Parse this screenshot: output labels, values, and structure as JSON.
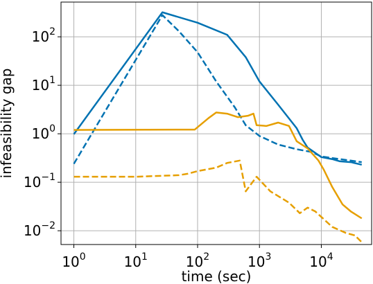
{
  "chart_data": {
    "type": "line",
    "xlabel": "time (sec)",
    "ylabel": "infeasibility gap",
    "xscale": "log",
    "yscale": "log",
    "xlim": [
      0.62,
      65000
    ],
    "ylim": [
      0.0052,
      520
    ],
    "grid": true,
    "legend": "none",
    "x_ticks": [
      {
        "base": "10",
        "exp": "0",
        "value": 1
      },
      {
        "base": "10",
        "exp": "1",
        "value": 10
      },
      {
        "base": "10",
        "exp": "2",
        "value": 100
      },
      {
        "base": "10",
        "exp": "3",
        "value": 1000
      },
      {
        "base": "10",
        "exp": "4",
        "value": 10000
      }
    ],
    "y_ticks": [
      {
        "base": "10",
        "exp": "2",
        "value": 100
      },
      {
        "base": "10",
        "exp": "1",
        "value": 10
      },
      {
        "base": "10",
        "exp": "0",
        "value": 1
      },
      {
        "base": "10",
        "exp": "−1",
        "value": 0.1
      },
      {
        "base": "10",
        "exp": "−2",
        "value": 0.01
      }
    ],
    "series": [
      {
        "color": "#0072b2",
        "style": "solid",
        "points": [
          [
            1,
            0.98
          ],
          [
            27,
            320
          ],
          [
            100,
            195
          ],
          [
            300,
            110
          ],
          [
            600,
            38
          ],
          [
            1000,
            12
          ],
          [
            2000,
            4
          ],
          [
            4000,
            1.3
          ],
          [
            5000,
            0.75
          ],
          [
            6000,
            0.52
          ],
          [
            10000,
            0.33
          ],
          [
            15000,
            0.3
          ],
          [
            20000,
            0.27
          ],
          [
            30000,
            0.26
          ],
          [
            45000,
            0.23
          ]
        ]
      },
      {
        "color": "#0072b2",
        "style": "dashed",
        "points": [
          [
            1,
            0.24
          ],
          [
            27,
            280
          ],
          [
            50,
            130
          ],
          [
            100,
            48
          ],
          [
            200,
            12
          ],
          [
            400,
            3.5
          ],
          [
            600,
            1.5
          ],
          [
            1000,
            0.9
          ],
          [
            2000,
            0.6
          ],
          [
            4000,
            0.48
          ],
          [
            7000,
            0.42
          ],
          [
            10000,
            0.34
          ],
          [
            20000,
            0.3
          ],
          [
            45000,
            0.26
          ]
        ]
      },
      {
        "color": "#e69f00",
        "style": "solid",
        "points": [
          [
            1,
            1.2
          ],
          [
            90,
            1.22
          ],
          [
            150,
            2.1
          ],
          [
            200,
            2.75
          ],
          [
            300,
            2.6
          ],
          [
            450,
            2.2
          ],
          [
            650,
            2.35
          ],
          [
            800,
            2.6
          ],
          [
            900,
            1.5
          ],
          [
            1300,
            1.45
          ],
          [
            2000,
            1.7
          ],
          [
            3000,
            1.45
          ],
          [
            4000,
            0.7
          ],
          [
            6000,
            0.5
          ],
          [
            9000,
            0.28
          ],
          [
            11000,
            0.18
          ],
          [
            15000,
            0.08
          ],
          [
            22000,
            0.035
          ],
          [
            30000,
            0.025
          ],
          [
            45000,
            0.018
          ]
        ]
      },
      {
        "color": "#e69f00",
        "style": "dashed",
        "points": [
          [
            1,
            0.13
          ],
          [
            10,
            0.13
          ],
          [
            50,
            0.14
          ],
          [
            70,
            0.15
          ],
          [
            100,
            0.17
          ],
          [
            200,
            0.2
          ],
          [
            300,
            0.25
          ],
          [
            480,
            0.28
          ],
          [
            600,
            0.065
          ],
          [
            700,
            0.085
          ],
          [
            900,
            0.13
          ],
          [
            1500,
            0.065
          ],
          [
            3000,
            0.038
          ],
          [
            4500,
            0.023
          ],
          [
            6000,
            0.03
          ],
          [
            8000,
            0.025
          ],
          [
            15000,
            0.012
          ],
          [
            25000,
            0.009
          ],
          [
            35000,
            0.008
          ],
          [
            45000,
            0.0058
          ]
        ]
      }
    ]
  }
}
